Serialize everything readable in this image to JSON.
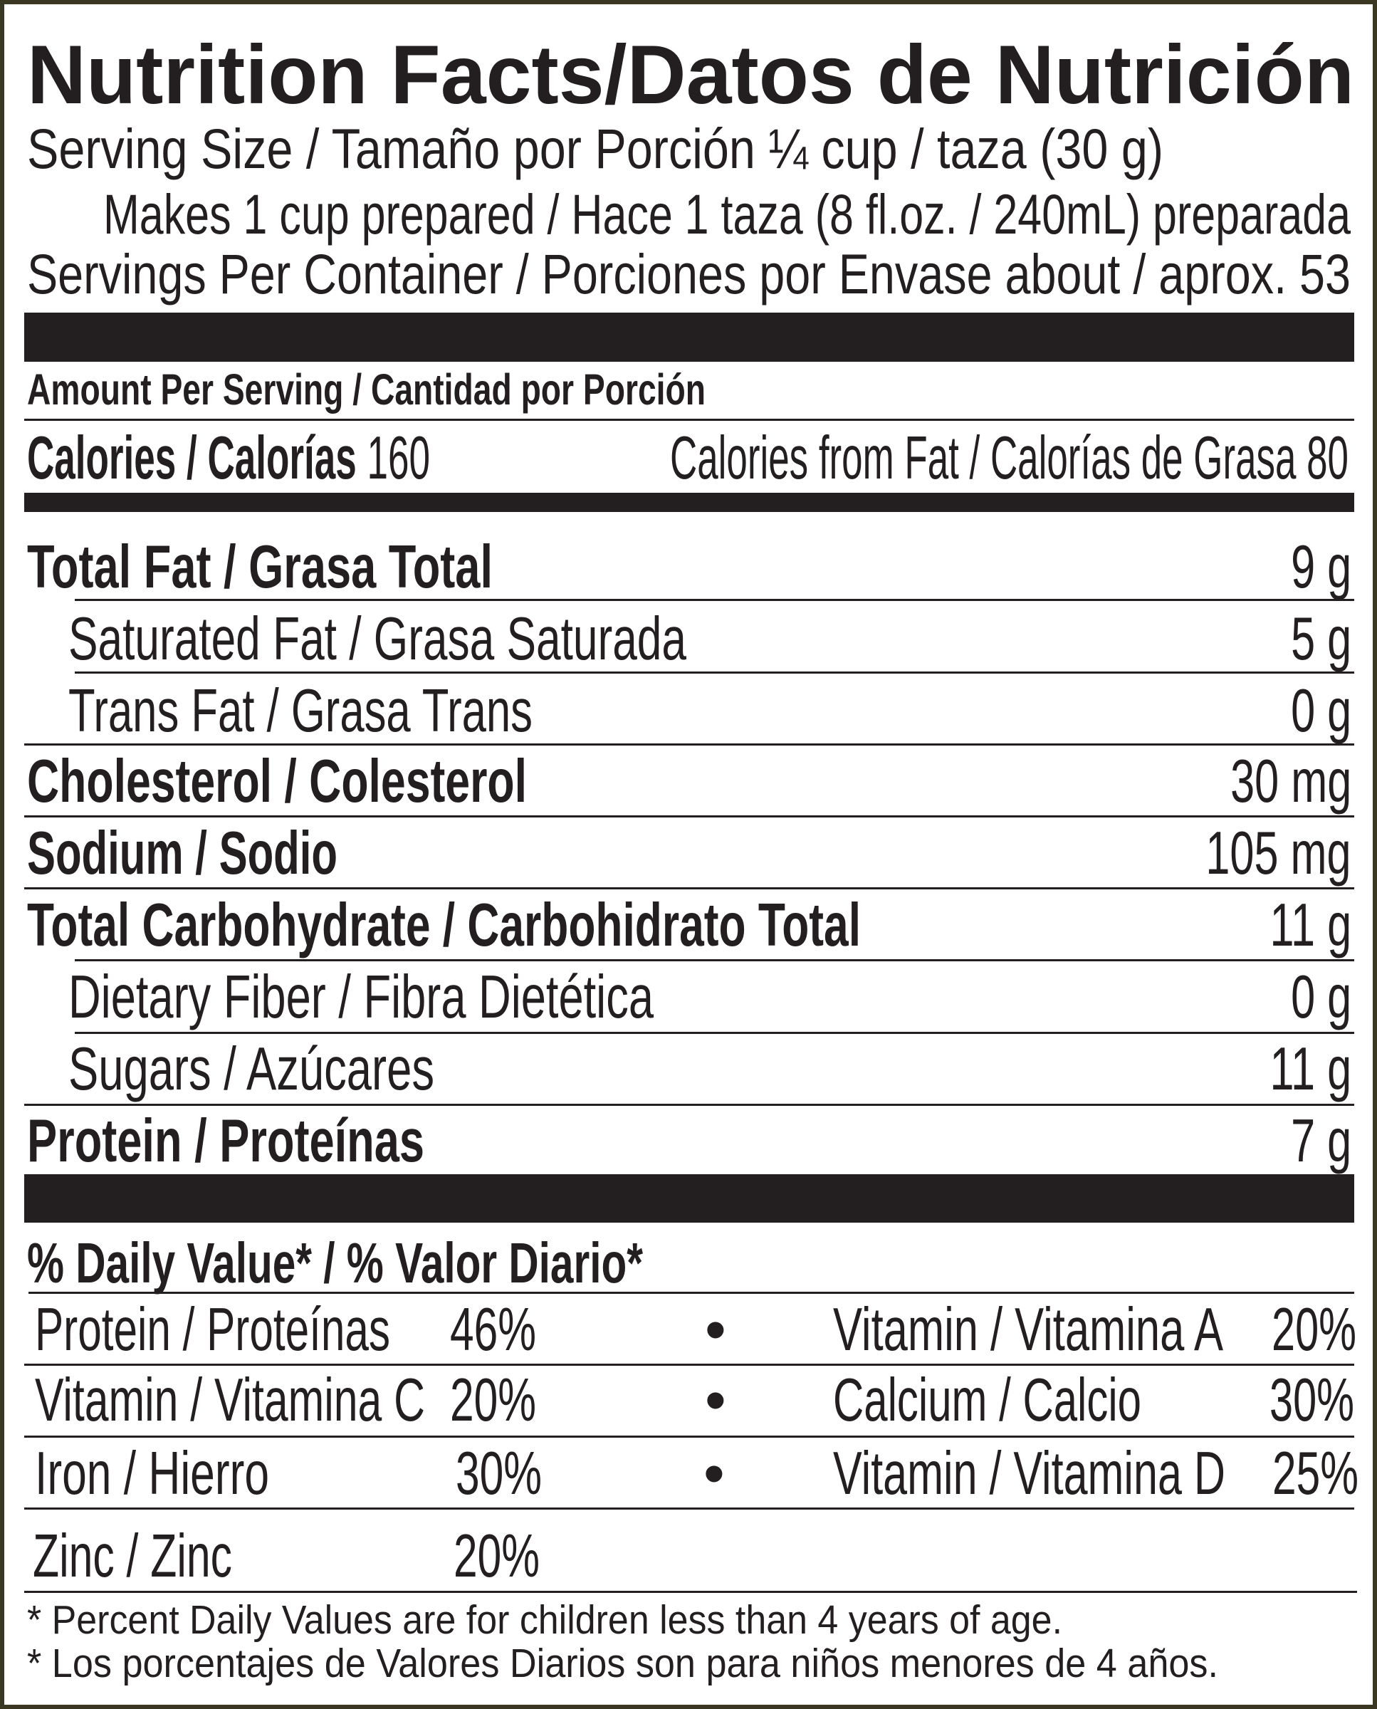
{
  "title": "Nutrition Facts/Datos de Nutrición",
  "serving_size": "Serving Size / Tamaño por Porción ¼ cup / taza (30 g)",
  "makes": "Makes 1 cup prepared / Hace 1 taza (8 fl.oz. / 240mL) preparada",
  "servings_per_container": "Servings Per Container / Porciones por Envase about / aprox. 53",
  "amount_per_serving": "Amount Per Serving / Cantidad por Porción",
  "calories": {
    "label": "Calories / Calorías",
    "value": "160",
    "from_fat": "Calories from Fat / Calorías de Grasa 80"
  },
  "nutrients": [
    {
      "label": "Total Fat / Grasa Total",
      "value": "9 g"
    },
    {
      "label": "Saturated Fat / Grasa Saturada",
      "value": "5 g"
    },
    {
      "label": "Trans Fat / Grasa Trans",
      "value": "0 g"
    },
    {
      "label": "Cholesterol / Colesterol",
      "value": "30 mg"
    },
    {
      "label": "Sodium / Sodio",
      "value": "105 mg"
    },
    {
      "label": "Total Carbohydrate / Carbohidrato Total",
      "value": "11 g"
    },
    {
      "label": "Dietary Fiber / Fibra Dietética",
      "value": "0 g"
    },
    {
      "label": "Sugars / Azúcares",
      "value": "11 g"
    },
    {
      "label": "Protein / Proteínas",
      "value": "7 g"
    }
  ],
  "daily_value_header": "% Daily Value* / % Valor Diario*",
  "vitamins": [
    {
      "left_label": "Protein / Proteínas",
      "left_value": "46%",
      "bullet": "•",
      "right_label": "Vitamin / Vitamina A",
      "right_value": "20%"
    },
    {
      "left_label": "Vitamin / Vitamina C",
      "left_value": "20%",
      "bullet": "•",
      "right_label": "Calcium / Calcio",
      "right_value": "30%"
    },
    {
      "left_label": "Iron / Hierro",
      "left_value": "30%",
      "bullet": "•",
      "right_label": "Vitamin / Vitamina D",
      "right_value": "25%"
    },
    {
      "left_label": "Zinc / Zinc",
      "left_value": "20%"
    }
  ],
  "footnotes": [
    "* Percent Daily Values are for children less than 4 years of age.",
    "* Los porcentajes de Valores Diarios son para niños menores de 4 años."
  ]
}
